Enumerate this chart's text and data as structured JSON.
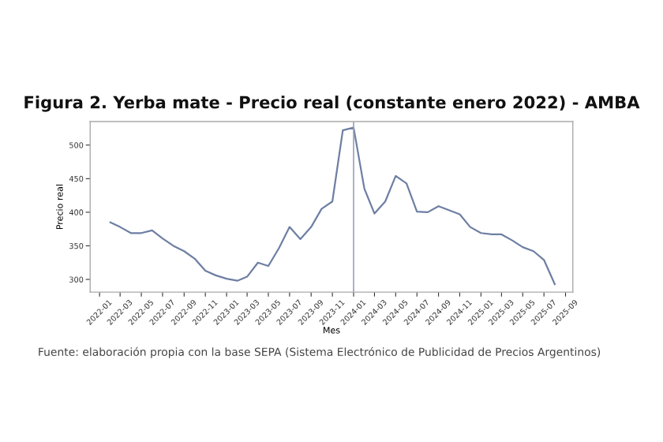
{
  "chart_data": {
    "type": "line",
    "title": "Figura 2. Yerba mate - Precio real (constante enero 2022) - AMBA",
    "xlabel": "Mes",
    "ylabel": "Precio real",
    "annotations": [
      "Fuente: elaboración propia con la base SEPA (Sistema Electrónico de Publicidad de Precios Argentinos)"
    ],
    "x": [
      "2022-02",
      "2022-03",
      "2022-04",
      "2022-05",
      "2022-06",
      "2022-07",
      "2022-08",
      "2022-09",
      "2022-10",
      "2022-11",
      "2022-12",
      "2023-01",
      "2023-02",
      "2023-03",
      "2023-04",
      "2023-05",
      "2023-06",
      "2023-07",
      "2023-08",
      "2023-09",
      "2023-10",
      "2023-11",
      "2023-12",
      "2024-01",
      "2024-02",
      "2024-03",
      "2024-04",
      "2024-05",
      "2024-06",
      "2024-07",
      "2024-08",
      "2024-09",
      "2024-10",
      "2024-11",
      "2024-12",
      "2025-01",
      "2025-02",
      "2025-03",
      "2025-04",
      "2025-05",
      "2025-06",
      "2025-07",
      "2025-08"
    ],
    "series": [
      {
        "color": "#6e7fa3",
        "values": [
          385,
          378,
          369,
          369,
          373,
          361,
          350,
          342,
          331,
          313,
          306,
          301,
          298,
          304,
          325,
          320,
          347,
          378,
          360,
          378,
          405,
          416,
          522,
          526,
          435,
          398,
          416,
          454,
          443,
          401,
          400,
          409,
          403,
          397,
          378,
          369,
          367,
          367,
          358,
          348,
          342,
          329,
          293
        ]
      }
    ],
    "xlim": [
      "2021-12-05",
      "2025-09-22"
    ],
    "xticks": [
      "2022-01",
      "2022-03",
      "2022-05",
      "2022-07",
      "2022-09",
      "2022-11",
      "2023-01",
      "2023-03",
      "2023-05",
      "2023-07",
      "2023-09",
      "2023-11",
      "2024-01",
      "2024-03",
      "2024-05",
      "2024-07",
      "2024-09",
      "2024-11",
      "2025-01",
      "2025-03",
      "2025-05",
      "2025-07",
      "2025-09"
    ],
    "ylim": [
      281,
      535
    ],
    "yticks": [
      300,
      350,
      400,
      450,
      500
    ],
    "ref_lines": [
      {
        "axis": "x",
        "value": "2024-01",
        "color": "#9aa3b5"
      }
    ],
    "grid": false,
    "marker": "none",
    "line_style": "solid"
  }
}
